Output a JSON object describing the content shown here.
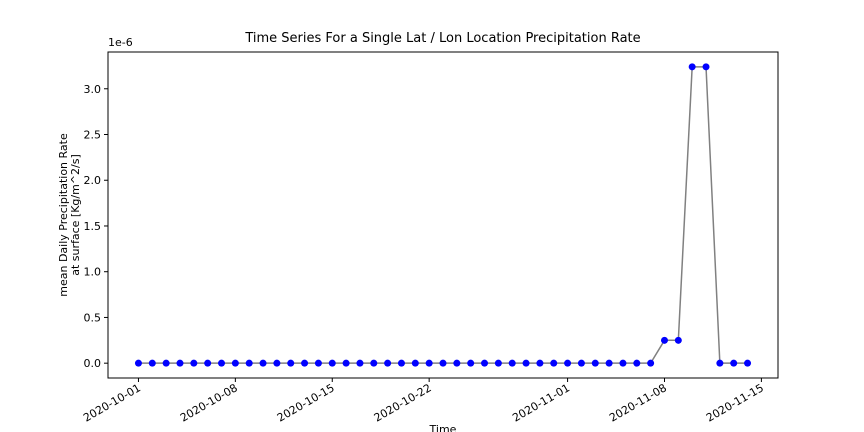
{
  "chart_data": {
    "type": "line",
    "title": "Time Series For a Single Lat / Lon Location Precipitation Rate",
    "xlabel": "Time",
    "ylabel": "mean Daily Precipitation Rate\nat surface [Kg/m^2/s]",
    "y_offset_label": "1e-6",
    "x": [
      "2020-10-01",
      "2020-10-02",
      "2020-10-03",
      "2020-10-04",
      "2020-10-05",
      "2020-10-06",
      "2020-10-07",
      "2020-10-08",
      "2020-10-09",
      "2020-10-10",
      "2020-10-11",
      "2020-10-12",
      "2020-10-13",
      "2020-10-14",
      "2020-10-15",
      "2020-10-16",
      "2020-10-17",
      "2020-10-18",
      "2020-10-19",
      "2020-10-20",
      "2020-10-21",
      "2020-10-22",
      "2020-10-23",
      "2020-10-24",
      "2020-10-25",
      "2020-10-26",
      "2020-10-27",
      "2020-10-28",
      "2020-10-29",
      "2020-10-30",
      "2020-10-31",
      "2020-11-01",
      "2020-11-02",
      "2020-11-03",
      "2020-11-04",
      "2020-11-05",
      "2020-11-06",
      "2020-11-07",
      "2020-11-08",
      "2020-11-09",
      "2020-11-10",
      "2020-11-11",
      "2020-11-12",
      "2020-11-13",
      "2020-11-14"
    ],
    "series": [
      {
        "line_color": "#808080",
        "marker_color": "#0000ff",
        "values": [
          0,
          0,
          0,
          0,
          0,
          0,
          0,
          0,
          0,
          0,
          0,
          0,
          0,
          0,
          0,
          0,
          0,
          0,
          0,
          0,
          0,
          0,
          0,
          0,
          0,
          0,
          0,
          0,
          0,
          0,
          0,
          0,
          0,
          0,
          0,
          0,
          0,
          0,
          2.5e-07,
          2.5e-07,
          3.24e-06,
          3.24e-06,
          0,
          0,
          0
        ]
      }
    ],
    "xlim": [
      "2020-09-28T19:12",
      "2020-11-16T04:48"
    ],
    "xticks": [
      "2020-10-01",
      "2020-10-08",
      "2020-10-15",
      "2020-10-22",
      "2020-11-01",
      "2020-11-08",
      "2020-11-15"
    ],
    "ylim": [
      -1.62e-07,
      3.402e-06
    ],
    "yticks": [
      {
        "value": 0,
        "label": "0.0"
      },
      {
        "value": 5e-07,
        "label": "0.5"
      },
      {
        "value": 1e-06,
        "label": "1.0"
      },
      {
        "value": 1.5e-06,
        "label": "1.5"
      },
      {
        "value": 2e-06,
        "label": "2.0"
      },
      {
        "value": 2.5e-06,
        "label": "2.5"
      },
      {
        "value": 3e-06,
        "label": "3.0"
      }
    ],
    "grid": false
  }
}
